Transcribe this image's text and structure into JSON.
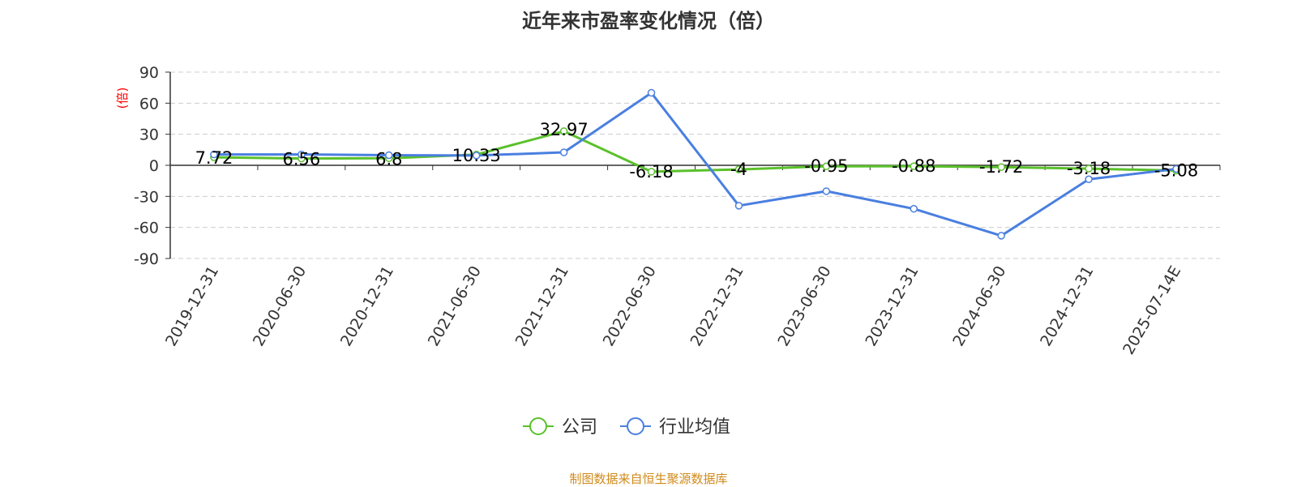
{
  "chart_data": {
    "type": "line",
    "title": "近年来市盈率变化情况（倍）",
    "ylabel": "(倍)",
    "xlabel": "",
    "categories": [
      "2019-12-31",
      "2020-06-30",
      "2020-12-31",
      "2021-06-30",
      "2021-12-31",
      "2022-06-30",
      "2022-12-31",
      "2023-06-30",
      "2023-12-31",
      "2024-06-30",
      "2024-12-31",
      "2025-07-14E"
    ],
    "ylim": [
      -90,
      90
    ],
    "yticks": [
      90,
      60,
      30,
      0,
      -30,
      -60,
      -90
    ],
    "grid": true,
    "legend_position": "bottom-center",
    "series": [
      {
        "name": "公司",
        "color": "#5ac12b",
        "values": [
          7.72,
          6.56,
          6.8,
          10.33,
          32.97,
          -6.18,
          -4,
          -0.95,
          -0.88,
          -1.72,
          -3.18,
          -5.08
        ],
        "labels": [
          "7.72",
          "6.56",
          "6.8",
          "10.33",
          "32.97",
          "-6.18",
          "-4",
          "-0.95",
          "-0.88",
          "-1.72",
          "-3.18",
          "-5.08"
        ]
      },
      {
        "name": "行业均值",
        "color": "#4a7fe0",
        "values": [
          10.5,
          10.5,
          9.8,
          9.5,
          12.5,
          70,
          -39,
          -25,
          -42,
          -68,
          -13.5,
          -3.5
        ]
      }
    ]
  },
  "source_text": "制图数据来自恒生聚源数据库",
  "colors": {
    "title": "#333333",
    "axis": "#333333",
    "grid": "#cccccc",
    "ylabel": "#ff0000",
    "source": "#d08a1a"
  }
}
